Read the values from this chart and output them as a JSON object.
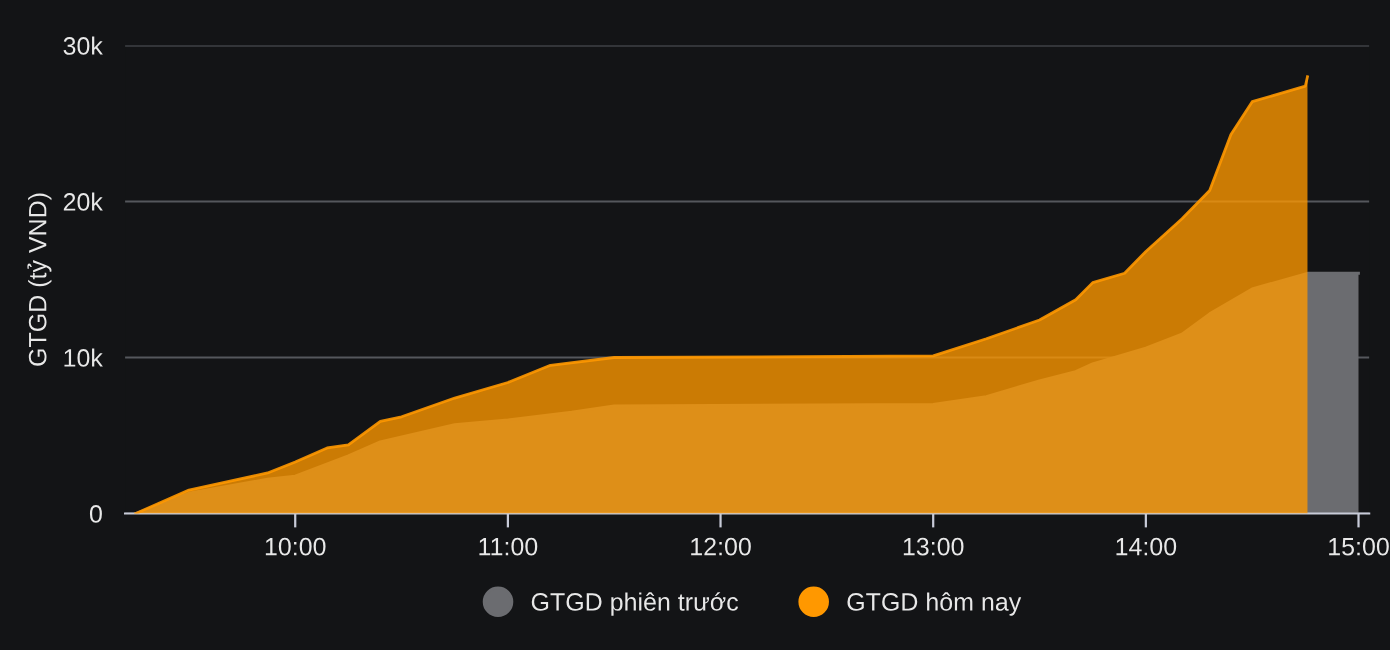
{
  "chart_data": {
    "type": "area",
    "ylabel": "GTGD (tỷ VND)",
    "series": [
      {
        "name": "GTGD phiên trước",
        "color": "#6b6c70",
        "x": [
          9.25,
          9.5,
          9.87,
          10.0,
          10.25,
          10.4,
          10.75,
          11.0,
          11.3,
          11.5,
          13.0,
          13.25,
          13.5,
          13.67,
          13.75,
          14.0,
          14.17,
          14.3,
          14.5,
          14.76,
          15.0
        ],
        "values": [
          0,
          1300,
          2200,
          2400,
          3700,
          4600,
          5700,
          6000,
          6500,
          6900,
          7000,
          7500,
          8500,
          9100,
          9600,
          10600,
          11500,
          12800,
          14400,
          15400,
          15400
        ]
      },
      {
        "name": "GTGD hôm nay",
        "color": "#ff9800",
        "x": [
          9.25,
          9.5,
          9.87,
          10.0,
          10.15,
          10.25,
          10.4,
          10.5,
          10.75,
          11.0,
          11.2,
          11.5,
          13.0,
          13.25,
          13.5,
          13.67,
          13.75,
          13.9,
          14.0,
          14.17,
          14.3,
          14.4,
          14.5,
          14.75,
          14.76
        ],
        "values": [
          0,
          1500,
          2600,
          3300,
          4200,
          4400,
          5900,
          6200,
          7400,
          8400,
          9500,
          10000,
          10100,
          11200,
          12400,
          13700,
          14800,
          15400,
          16800,
          18900,
          20700,
          24300,
          26400,
          27400,
          28000
        ]
      }
    ],
    "xlim": [
      9.2,
      15.05
    ],
    "xticks": [
      {
        "value": 10,
        "label": "10:00"
      },
      {
        "value": 11,
        "label": "11:00"
      },
      {
        "value": 12,
        "label": "12:00"
      },
      {
        "value": 13,
        "label": "13:00"
      },
      {
        "value": 14,
        "label": "14:00"
      },
      {
        "value": 15,
        "label": "15:00"
      }
    ],
    "ylim": [
      0,
      30000
    ],
    "yticks": [
      0,
      {
        "value": 10000,
        "label": "10k"
      },
      {
        "value": 20000,
        "label": "20k"
      },
      {
        "value": 30000,
        "label": "30k"
      }
    ],
    "grid": "y",
    "legend": "bottom"
  }
}
